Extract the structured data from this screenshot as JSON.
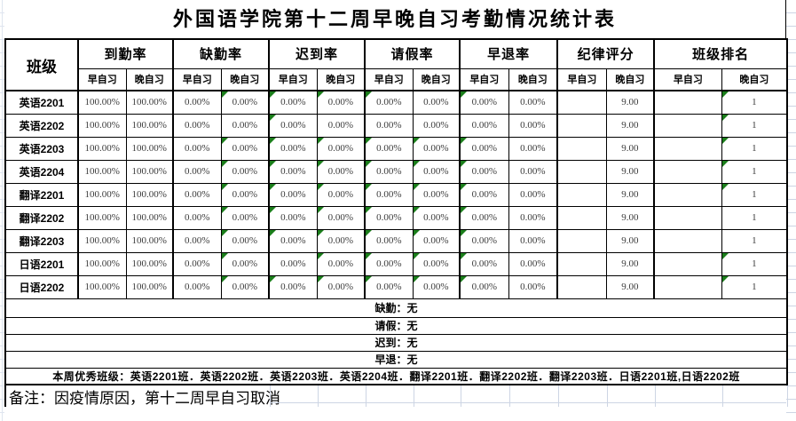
{
  "title": "外国语学院第十二周早晚自习考勤情况统计表",
  "header": {
    "corner": "班级",
    "groups": [
      {
        "label": "到勤率"
      },
      {
        "label": "缺勤率"
      },
      {
        "label": "迟到率"
      },
      {
        "label": "请假率"
      },
      {
        "label": "早退率"
      },
      {
        "label": "纪律评分"
      },
      {
        "label": "班级排名"
      }
    ],
    "sub_morning": "早自习",
    "sub_evening": "晚自习"
  },
  "rows": [
    {
      "label": "英语2201",
      "values": [
        "100.00%",
        "100.00%",
        "0.00%",
        "0.00%",
        "0.00%",
        "0.00%",
        "0.00%",
        "0.00%",
        "0.00%",
        "0.00%",
        "",
        "9.00",
        "",
        "1"
      ],
      "markers": [
        3,
        4,
        5,
        6,
        8,
        13
      ]
    },
    {
      "label": "英语2202",
      "values": [
        "100.00%",
        "100.00%",
        "0.00%",
        "0.00%",
        "0.00%",
        "0.00%",
        "0.00%",
        "0.00%",
        "0.00%",
        "0.00%",
        "",
        "9.00",
        "",
        "1"
      ],
      "markers": [
        4,
        13
      ]
    },
    {
      "label": "英语2203",
      "values": [
        "100.00%",
        "100.00%",
        "0.00%",
        "0.00%",
        "0.00%",
        "0.00%",
        "0.00%",
        "0.00%",
        "0.00%",
        "0.00%",
        "",
        "9.00",
        "",
        "1"
      ],
      "markers": [
        3,
        4,
        5,
        6,
        7,
        8,
        13
      ]
    },
    {
      "label": "英语2204",
      "values": [
        "100.00%",
        "100.00%",
        "0.00%",
        "0.00%",
        "0.00%",
        "0.00%",
        "0.00%",
        "0.00%",
        "0.00%",
        "0.00%",
        "",
        "9.00",
        "",
        "1"
      ],
      "markers": [
        3,
        4,
        5,
        6,
        7,
        8,
        13
      ]
    },
    {
      "label": "翻译2201",
      "values": [
        "100.00%",
        "100.00%",
        "0.00%",
        "0.00%",
        "0.00%",
        "0.00%",
        "0.00%",
        "0.00%",
        "0.00%",
        "0.00%",
        "",
        "9.00",
        "",
        "1"
      ],
      "markers": [
        3,
        4,
        5,
        6,
        7,
        8,
        13
      ]
    },
    {
      "label": "翻译2202",
      "values": [
        "100.00%",
        "100.00%",
        "0.00%",
        "0.00%",
        "0.00%",
        "0.00%",
        "0.00%",
        "0.00%",
        "0.00%",
        "0.00%",
        "",
        "9.00",
        "",
        "1"
      ],
      "markers": [
        3,
        4,
        5,
        6,
        7,
        8
      ]
    },
    {
      "label": "翻译2203",
      "values": [
        "100.00%",
        "100.00%",
        "0.00%",
        "0.00%",
        "0.00%",
        "0.00%",
        "0.00%",
        "0.00%",
        "0.00%",
        "0.00%",
        "",
        "9.00",
        "",
        "1"
      ],
      "markers": [
        3,
        4,
        5,
        6,
        7,
        8
      ]
    },
    {
      "label": "日语2201",
      "values": [
        "100.00%",
        "100.00%",
        "0.00%",
        "0.00%",
        "0.00%",
        "0.00%",
        "0.00%",
        "0.00%",
        "0.00%",
        "0.00%",
        "",
        "9.00",
        "",
        "1"
      ],
      "markers": [
        3,
        5,
        6,
        7,
        8,
        13
      ]
    },
    {
      "label": "日语2202",
      "values": [
        "100.00%",
        "100.00%",
        "0.00%",
        "0.00%",
        "0.00%",
        "0.00%",
        "0.00%",
        "0.00%",
        "0.00%",
        "0.00%",
        "",
        "9.00",
        "",
        "1"
      ],
      "markers": [
        3,
        4,
        5,
        6,
        7,
        8,
        13
      ]
    }
  ],
  "notes": [
    "缺勤：无",
    "请假：无",
    "迟到：无",
    "早退：无"
  ],
  "excellent_line": "本周优秀班级：英语2201班．英语2202班．英语2203班．英语2204班．翻译2201班．翻译2202班．翻译2203班．日语2201班,日语2202班",
  "remark": "备注：因疫情原因，第十二周早自习取消",
  "colors": {
    "border": "#000000",
    "grid_faint": "#cdd5e4",
    "marker_green": "#1b7e1b",
    "value_text": "#3c3c3c"
  }
}
